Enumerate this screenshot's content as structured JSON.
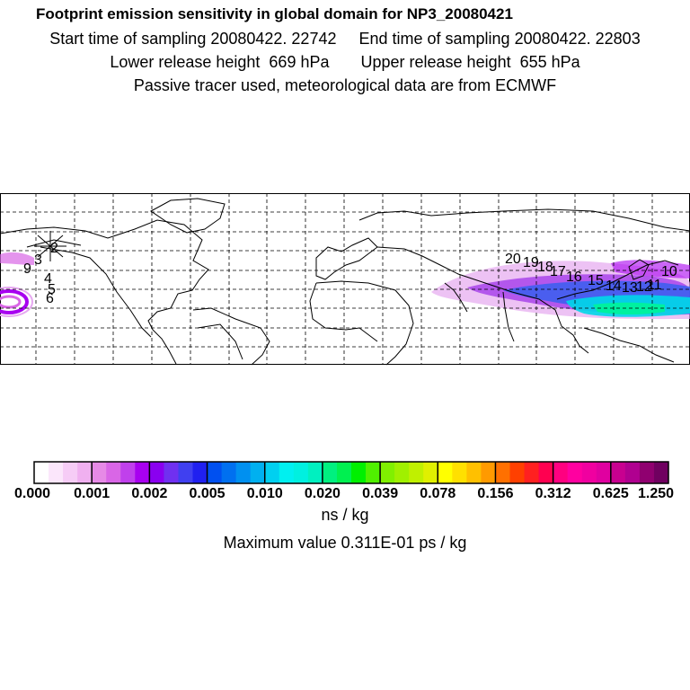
{
  "header": {
    "title": "Footprint emission sensitivity in global domain for NP3_20080421",
    "line2": "Start time of sampling 20080422. 22742     End time of sampling 20080422. 22803",
    "line3": "Lower release height  669 hPa       Upper release height  655 hPa",
    "line4": "Passive tracer used, meteorological data are from ECMWF"
  },
  "map": {
    "track_labels": [
      "9",
      "3",
      "2",
      "4",
      "5",
      "6",
      "20",
      "19",
      "18",
      "17",
      "16",
      "15",
      "14",
      "13",
      "12",
      "11",
      "10"
    ]
  },
  "colorbar": {
    "tick_labels": [
      "0.000",
      "0.001",
      "0.002",
      "0.005",
      "0.010",
      "0.020",
      "0.039",
      "0.078",
      "0.156",
      "0.312",
      "0.625",
      "1.250"
    ],
    "colors": [
      "#ffffff",
      "#fbe6fb",
      "#f6ccf6",
      "#f0b0f0",
      "#e68ae6",
      "#d966e6",
      "#c040ec",
      "#a800f0",
      "#8a00f0",
      "#7030f0",
      "#4040f0",
      "#2020f0",
      "#0050f0",
      "#0070f0",
      "#0090f0",
      "#00b0f0",
      "#00d0f0",
      "#00f0f0",
      "#00f0e0",
      "#00f0c0",
      "#00f080",
      "#00f050",
      "#00f000",
      "#50f000",
      "#80f000",
      "#a0f000",
      "#c0f000",
      "#e0f000",
      "#ffff00",
      "#ffe000",
      "#ffc000",
      "#ff9a00",
      "#ff7000",
      "#ff4000",
      "#ff2020",
      "#ff0050",
      "#ff0080",
      "#ff00a0",
      "#f000a0",
      "#e000a0",
      "#c80090",
      "#b00090",
      "#900070",
      "#700060"
    ]
  },
  "units_label": "ns / kg",
  "max_label": "Maximum value  0.311E-01 ps / kg"
}
